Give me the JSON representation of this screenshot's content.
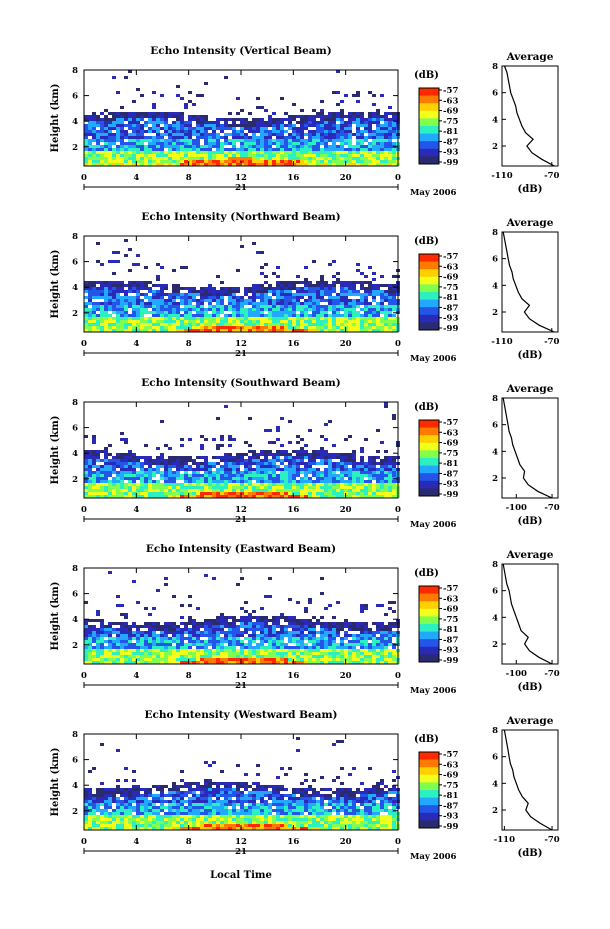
{
  "figure": {
    "xlabel": "Local Time",
    "date_mark": "21",
    "date_label": "May 2006",
    "colorbar_unit": "(dB)",
    "colorbar_ticks": [
      "-57",
      "-63",
      "-69",
      "-75",
      "-81",
      "-87",
      "-93",
      "-99"
    ],
    "colormap": [
      "#ff2a00",
      "#ff7a00",
      "#ffd000",
      "#f2ff1a",
      "#80ff50",
      "#2df0c0",
      "#22a8ff",
      "#2255e8",
      "#2a2ab8",
      "#2a2a6e"
    ],
    "profile_title": "Average",
    "profile_xlabel": "(dB)"
  },
  "chart_data": [
    {
      "type": "heatmap",
      "title": "Echo Intensity (Vertical Beam)",
      "ylabel": "Height (km)",
      "x_ticks": [
        "0",
        "4",
        "8",
        "12",
        "16",
        "20",
        "0"
      ],
      "xlim": [
        0,
        24
      ],
      "y_ticks": [
        "2",
        "4",
        "6",
        "8"
      ],
      "ylim": [
        0.5,
        8
      ],
      "colorbar_range_db": [
        -99,
        -57
      ],
      "layers_km": {
        "strong_surface_top": 0.7,
        "layer_top": 4.5
      },
      "profile": {
        "title": "Average",
        "x_ticks": [
          "-110",
          "-70"
        ],
        "xlim": [
          -110,
          -65
        ],
        "y_ticks": [
          "2",
          "4",
          "6",
          "8"
        ],
        "ylim": [
          0.5,
          8
        ],
        "xlabel": "(dB)",
        "height_km": [
          0.5,
          1.0,
          1.5,
          2.0,
          2.5,
          3.0,
          3.5,
          4.0,
          4.5,
          5.0,
          5.5,
          6.0,
          6.5,
          7.0,
          7.5,
          8.0
        ],
        "value_db": [
          -68,
          -78,
          -86,
          -90,
          -85,
          -91,
          -94,
          -96,
          -98,
          -99,
          -101,
          -103,
          -104,
          -105,
          -106,
          -108
        ]
      }
    },
    {
      "type": "heatmap",
      "title": "Echo Intensity (Northward Beam)",
      "ylabel": "Height (km)",
      "x_ticks": [
        "0",
        "4",
        "8",
        "12",
        "16",
        "20",
        "0"
      ],
      "xlim": [
        0,
        24
      ],
      "y_ticks": [
        "2",
        "4",
        "6",
        "8"
      ],
      "ylim": [
        0.5,
        8
      ],
      "colorbar_range_db": [
        -99,
        -57
      ],
      "layers_km": {
        "strong_surface_top": 0.6,
        "layer_top": 4.3
      },
      "profile": {
        "title": "Average",
        "x_ticks": [
          "-110",
          "-70"
        ],
        "xlim": [
          -110,
          -65
        ],
        "y_ticks": [
          "2",
          "4",
          "6",
          "8"
        ],
        "ylim": [
          0.5,
          8
        ],
        "xlabel": "(dB)",
        "height_km": [
          0.5,
          1.0,
          1.5,
          2.0,
          2.5,
          3.0,
          3.5,
          4.0,
          4.5,
          5.0,
          5.5,
          6.0,
          6.5,
          7.0,
          7.5,
          8.0
        ],
        "value_db": [
          -68,
          -80,
          -88,
          -92,
          -88,
          -94,
          -97,
          -99,
          -101,
          -102,
          -104,
          -105,
          -106,
          -107,
          -108,
          -109
        ]
      }
    },
    {
      "type": "heatmap",
      "title": "Echo Intensity (Southward Beam)",
      "ylabel": "Height (km)",
      "x_ticks": [
        "0",
        "4",
        "8",
        "12",
        "16",
        "20",
        "0"
      ],
      "xlim": [
        0,
        24
      ],
      "y_ticks": [
        "2",
        "4",
        "6",
        "8"
      ],
      "ylim": [
        0.5,
        8
      ],
      "colorbar_range_db": [
        -99,
        -57
      ],
      "layers_km": {
        "strong_surface_top": 0.6,
        "layer_top": 4.0
      },
      "profile": {
        "title": "Average",
        "x_ticks": [
          "-100",
          "-70"
        ],
        "xlim": [
          -112,
          -65
        ],
        "y_ticks": [
          "2",
          "4",
          "6",
          "8"
        ],
        "ylim": [
          0.5,
          8
        ],
        "xlabel": "(dB)",
        "height_km": [
          0.5,
          1.0,
          1.5,
          2.0,
          2.5,
          3.0,
          3.5,
          4.0,
          4.5,
          5.0,
          5.5,
          6.0,
          6.5,
          7.0,
          7.5,
          8.0
        ],
        "value_db": [
          -70,
          -82,
          -90,
          -94,
          -93,
          -97,
          -99,
          -101,
          -103,
          -104,
          -106,
          -107,
          -108,
          -109,
          -110,
          -111
        ]
      }
    },
    {
      "type": "heatmap",
      "title": "Echo Intensity (Eastward Beam)",
      "ylabel": "Height (km)",
      "x_ticks": [
        "0",
        "4",
        "8",
        "12",
        "16",
        "20",
        "0"
      ],
      "xlim": [
        0,
        24
      ],
      "y_ticks": [
        "2",
        "4",
        "6",
        "8"
      ],
      "ylim": [
        0.5,
        8
      ],
      "colorbar_range_db": [
        -99,
        -57
      ],
      "layers_km": {
        "strong_surface_top": 0.6,
        "layer_top": 4.0
      },
      "profile": {
        "title": "Average",
        "x_ticks": [
          "-100",
          "-70"
        ],
        "xlim": [
          -112,
          -65
        ],
        "y_ticks": [
          "2",
          "4",
          "6",
          "8"
        ],
        "ylim": [
          0.5,
          8
        ],
        "xlabel": "(dB)",
        "height_km": [
          0.5,
          1.0,
          1.5,
          2.0,
          2.5,
          3.0,
          3.5,
          4.0,
          4.5,
          5.0,
          5.5,
          6.0,
          6.5,
          7.0,
          7.5,
          8.0
        ],
        "value_db": [
          -70,
          -81,
          -89,
          -93,
          -90,
          -96,
          -98,
          -100,
          -102,
          -104,
          -105,
          -106,
          -108,
          -109,
          -110,
          -111
        ]
      }
    },
    {
      "type": "heatmap",
      "title": "Echo Intensity (Westward Beam)",
      "ylabel": "Height (km)",
      "x_ticks": [
        "0",
        "4",
        "8",
        "12",
        "16",
        "20",
        "0"
      ],
      "xlim": [
        0,
        24
      ],
      "y_ticks": [
        "2",
        "4",
        "6",
        "8"
      ],
      "ylim": [
        0.5,
        8
      ],
      "colorbar_range_db": [
        -99,
        -57
      ],
      "layers_km": {
        "strong_surface_top": 0.6,
        "layer_top": 4.0
      },
      "profile": {
        "title": "Average",
        "x_ticks": [
          "-110",
          "-70"
        ],
        "xlim": [
          -112,
          -65
        ],
        "y_ticks": [
          "2",
          "4",
          "6",
          "8"
        ],
        "ylim": [
          0.5,
          8
        ],
        "xlabel": "(dB)",
        "height_km": [
          0.5,
          1.0,
          1.5,
          2.0,
          2.5,
          3.0,
          3.5,
          4.0,
          4.5,
          5.0,
          5.5,
          6.0,
          6.5,
          7.0,
          7.5,
          8.0
        ],
        "value_db": [
          -70,
          -80,
          -88,
          -92,
          -90,
          -95,
          -98,
          -100,
          -102,
          -103,
          -105,
          -106,
          -107,
          -108,
          -109,
          -110
        ]
      }
    }
  ]
}
